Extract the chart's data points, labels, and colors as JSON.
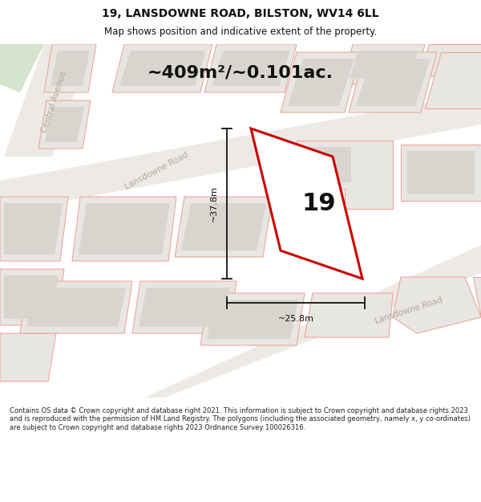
{
  "title": "19, LANSDOWNE ROAD, BILSTON, WV14 6LL",
  "subtitle": "Map shows position and indicative extent of the property.",
  "area_text": "~409m²/~0.101ac.",
  "property_number": "19",
  "dim_height": "~37.8m",
  "dim_width": "~25.8m",
  "footer": "Contains OS data © Crown copyright and database right 2021. This information is subject to Crown copyright and database rights 2023 and is reproduced with the permission of HM Land Registry. The polygons (including the associated geometry, namely x, y co-ordinates) are subject to Crown copyright and database rights 2023 Ordnance Survey 100026316.",
  "map_bg": "#f2f0ed",
  "block_fill": "#e8e6e2",
  "block_inner": "#d8d5cf",
  "block_edge": "#e8a090",
  "plot_color": "#cc0000",
  "dim_color": "#111111",
  "road_label_color": "#b0a898",
  "green_color": "#d4e4cc",
  "title_fontsize": 10,
  "subtitle_fontsize": 8.5,
  "area_fontsize": 16,
  "property_num_fontsize": 22,
  "dim_fontsize": 8,
  "road_label_fontsize": 7.5,
  "footer_fontsize": 6.0
}
